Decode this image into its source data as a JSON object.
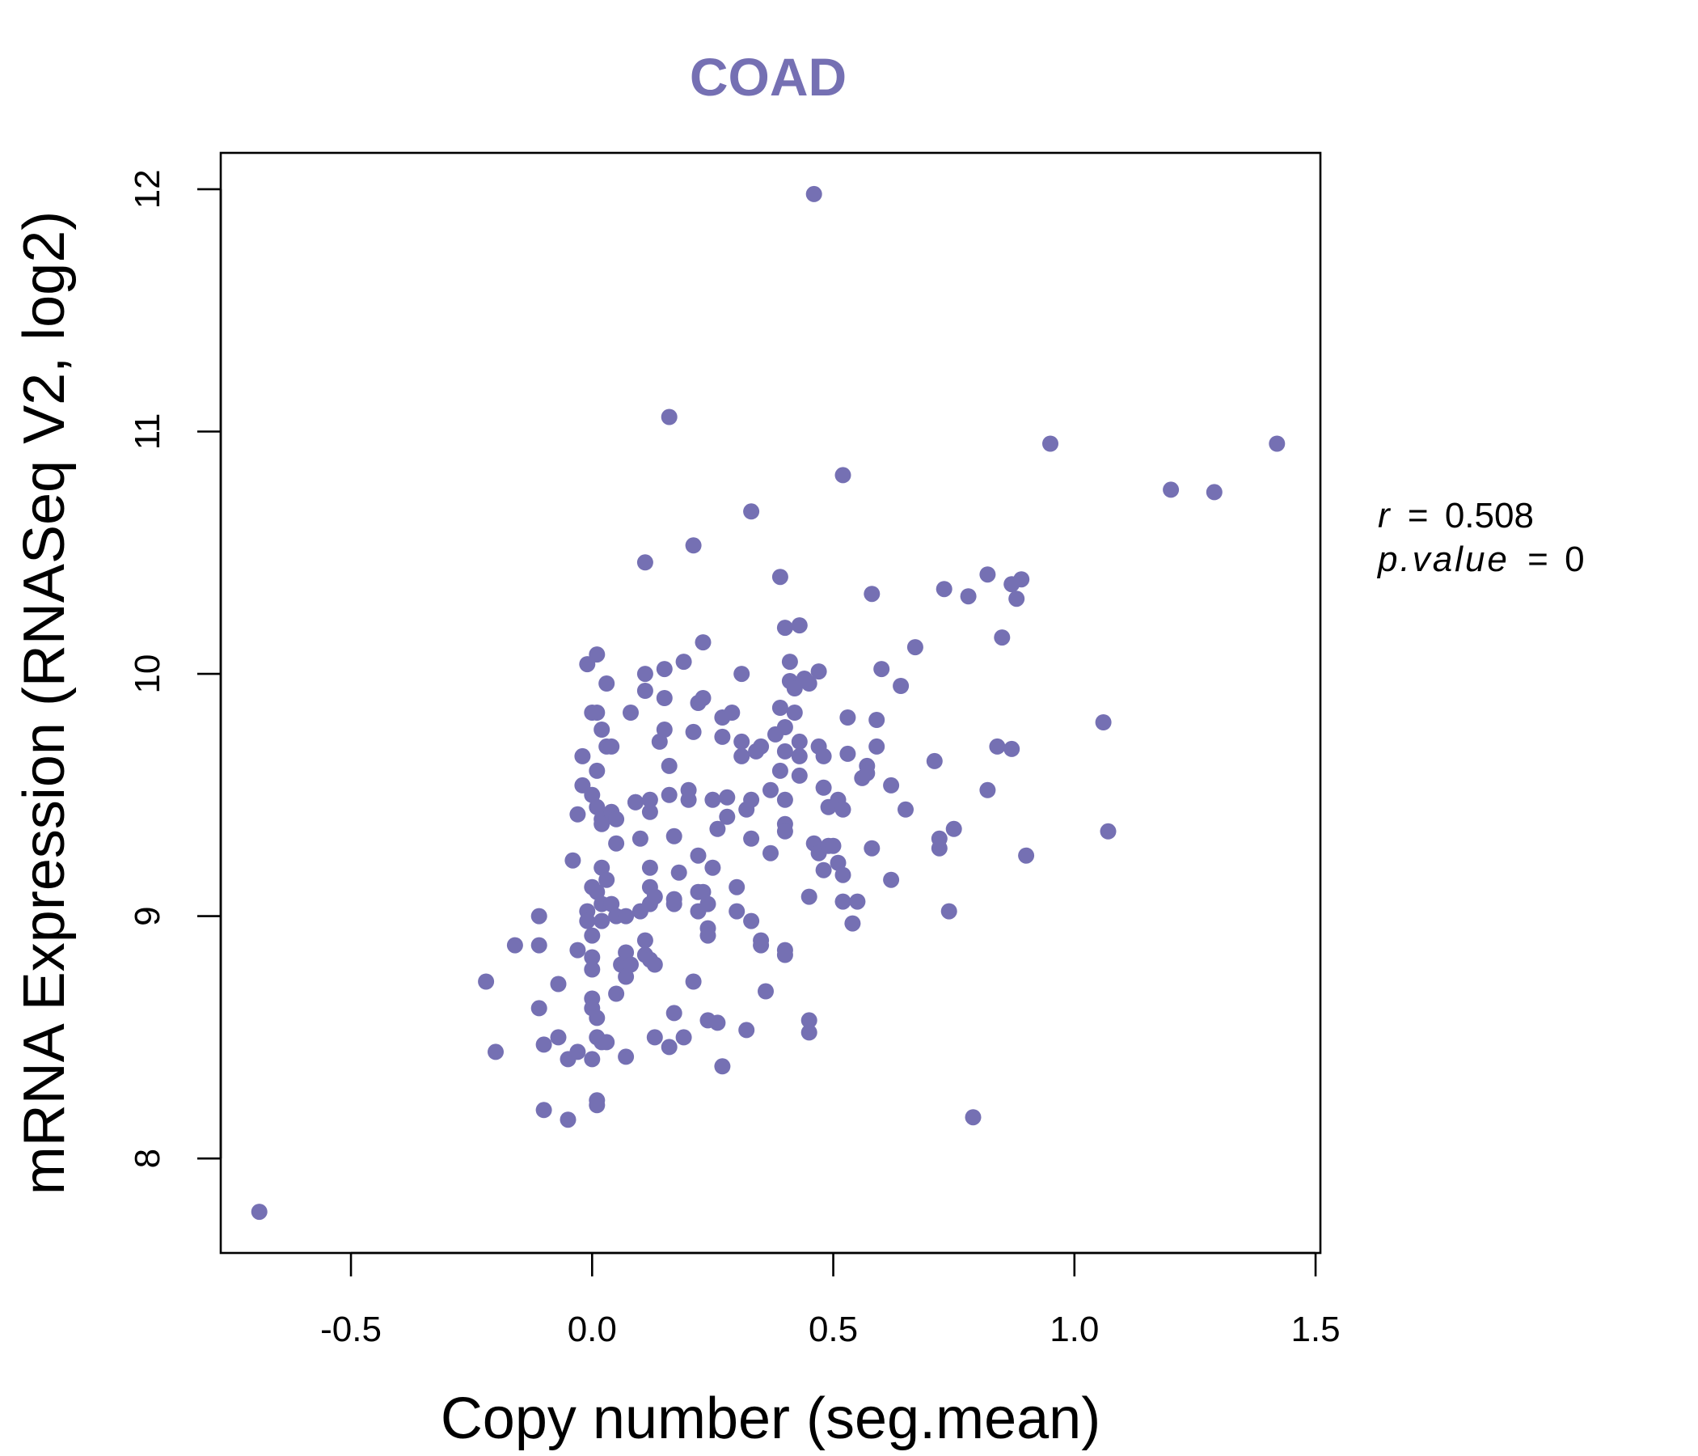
{
  "chart_data": {
    "type": "scatter",
    "title": "COAD",
    "xlabel": "Copy number (seg.mean)",
    "ylabel": "mRNA Expression (RNASeq V2, log2)",
    "xlim": [
      -0.77,
      1.51
    ],
    "ylim": [
      7.61,
      12.15
    ],
    "x_ticks": [
      -0.5,
      0.0,
      0.5,
      1.0,
      1.5
    ],
    "x_tick_labels": [
      "-0.5",
      "0.0",
      "0.5",
      "1.0",
      "1.5"
    ],
    "y_ticks": [
      8,
      9,
      10,
      11,
      12
    ],
    "y_tick_labels": [
      "8",
      "9",
      "10",
      "11",
      "12"
    ],
    "point_color": "#7570b3",
    "title_color": "#7570b3",
    "stats": {
      "r_label": "r",
      "r_value": "0.508",
      "p_label": "p.value",
      "p_value": "0"
    },
    "series": [
      {
        "name": "COAD",
        "points": [
          [
            -0.69,
            7.78
          ],
          [
            -0.22,
            8.73
          ],
          [
            -0.2,
            8.44
          ],
          [
            -0.16,
            8.88
          ],
          [
            -0.11,
            9.0
          ],
          [
            -0.11,
            8.88
          ],
          [
            -0.11,
            8.62
          ],
          [
            -0.1,
            8.47
          ],
          [
            -0.1,
            8.2
          ],
          [
            -0.07,
            8.72
          ],
          [
            -0.07,
            8.5
          ],
          [
            -0.05,
            8.16
          ],
          [
            -0.05,
            8.41
          ],
          [
            -0.04,
            9.23
          ],
          [
            -0.03,
            8.44
          ],
          [
            -0.03,
            8.86
          ],
          [
            -0.02,
            9.66
          ],
          [
            -0.02,
            9.54
          ],
          [
            -0.03,
            9.42
          ],
          [
            -0.01,
            9.02
          ],
          [
            -0.01,
            8.98
          ],
          [
            0.0,
            8.66
          ],
          [
            0.0,
            8.62
          ],
          [
            0.0,
            8.83
          ],
          [
            0.0,
            8.78
          ],
          [
            0.0,
            9.84
          ],
          [
            -0.01,
            10.04
          ],
          [
            0.01,
            10.08
          ],
          [
            0.01,
            9.84
          ],
          [
            0.02,
            9.77
          ],
          [
            0.01,
            9.6
          ],
          [
            0.0,
            9.5
          ],
          [
            0.01,
            9.45
          ],
          [
            0.02,
            9.4
          ],
          [
            0.03,
            9.96
          ],
          [
            0.03,
            9.7
          ],
          [
            0.04,
            9.7
          ],
          [
            0.02,
            9.38
          ],
          [
            0.02,
            9.2
          ],
          [
            0.03,
            9.15
          ],
          [
            0.01,
            9.1
          ],
          [
            0.0,
            9.12
          ],
          [
            0.02,
            9.05
          ],
          [
            0.04,
            9.05
          ],
          [
            0.05,
            9.0
          ],
          [
            0.0,
            8.92
          ],
          [
            0.01,
            8.58
          ],
          [
            0.01,
            8.5
          ],
          [
            0.02,
            8.48
          ],
          [
            0.03,
            8.48
          ],
          [
            0.0,
            8.41
          ],
          [
            0.01,
            8.24
          ],
          [
            0.01,
            8.22
          ],
          [
            0.02,
            8.98
          ],
          [
            0.04,
            9.43
          ],
          [
            0.05,
            9.4
          ],
          [
            0.05,
            9.3
          ],
          [
            0.06,
            8.8
          ],
          [
            0.07,
            8.85
          ],
          [
            0.07,
            8.75
          ],
          [
            0.08,
            8.8
          ],
          [
            0.05,
            8.68
          ],
          [
            0.07,
            8.42
          ],
          [
            0.07,
            9.0
          ],
          [
            0.08,
            9.84
          ],
          [
            0.09,
            9.47
          ],
          [
            0.09,
            9.47
          ],
          [
            0.1,
            9.02
          ],
          [
            0.1,
            9.32
          ],
          [
            0.11,
            10.0
          ],
          [
            0.11,
            9.93
          ],
          [
            0.11,
            10.46
          ],
          [
            0.12,
            9.48
          ],
          [
            0.12,
            9.43
          ],
          [
            0.12,
            9.2
          ],
          [
            0.12,
            9.12
          ],
          [
            0.12,
            9.05
          ],
          [
            0.13,
            9.08
          ],
          [
            0.11,
            8.9
          ],
          [
            0.11,
            8.84
          ],
          [
            0.12,
            8.82
          ],
          [
            0.13,
            8.8
          ],
          [
            0.13,
            8.5
          ],
          [
            0.14,
            9.72
          ],
          [
            0.15,
            9.77
          ],
          [
            0.15,
            9.9
          ],
          [
            0.15,
            10.02
          ],
          [
            0.16,
            9.62
          ],
          [
            0.16,
            9.5
          ],
          [
            0.16,
            11.06
          ],
          [
            0.17,
            9.33
          ],
          [
            0.17,
            9.05
          ],
          [
            0.17,
            9.07
          ],
          [
            0.17,
            8.6
          ],
          [
            0.16,
            8.46
          ],
          [
            0.18,
            9.18
          ],
          [
            0.19,
            8.5
          ],
          [
            0.19,
            10.05
          ],
          [
            0.2,
            9.48
          ],
          [
            0.2,
            9.52
          ],
          [
            0.21,
            9.76
          ],
          [
            0.21,
            8.73
          ],
          [
            0.21,
            10.53
          ],
          [
            0.22,
            9.88
          ],
          [
            0.22,
            9.25
          ],
          [
            0.22,
            9.02
          ],
          [
            0.22,
            9.1
          ],
          [
            0.23,
            9.9
          ],
          [
            0.23,
            10.13
          ],
          [
            0.23,
            9.1
          ],
          [
            0.24,
            9.05
          ],
          [
            0.24,
            8.95
          ],
          [
            0.24,
            8.92
          ],
          [
            0.24,
            8.57
          ],
          [
            0.25,
            9.48
          ],
          [
            0.25,
            9.2
          ],
          [
            0.26,
            9.36
          ],
          [
            0.26,
            8.56
          ],
          [
            0.27,
            8.38
          ],
          [
            0.27,
            9.82
          ],
          [
            0.27,
            9.74
          ],
          [
            0.28,
            9.49
          ],
          [
            0.28,
            9.41
          ],
          [
            0.29,
            9.84
          ],
          [
            0.3,
            9.12
          ],
          [
            0.3,
            9.02
          ],
          [
            0.31,
            10.0
          ],
          [
            0.31,
            9.72
          ],
          [
            0.31,
            9.66
          ],
          [
            0.32,
            9.44
          ],
          [
            0.33,
            9.48
          ],
          [
            0.33,
            9.32
          ],
          [
            0.33,
            8.98
          ],
          [
            0.32,
            8.53
          ],
          [
            0.33,
            10.67
          ],
          [
            0.34,
            9.68
          ],
          [
            0.35,
            9.7
          ],
          [
            0.35,
            8.9
          ],
          [
            0.35,
            8.88
          ],
          [
            0.36,
            8.69
          ],
          [
            0.37,
            9.52
          ],
          [
            0.37,
            9.26
          ],
          [
            0.38,
            9.75
          ],
          [
            0.39,
            9.86
          ],
          [
            0.39,
            9.6
          ],
          [
            0.39,
            10.4
          ],
          [
            0.4,
            9.78
          ],
          [
            0.4,
            9.68
          ],
          [
            0.4,
            9.48
          ],
          [
            0.4,
            9.38
          ],
          [
            0.4,
            9.35
          ],
          [
            0.4,
            8.86
          ],
          [
            0.4,
            8.84
          ],
          [
            0.4,
            10.19
          ],
          [
            0.41,
            10.05
          ],
          [
            0.41,
            9.97
          ],
          [
            0.42,
            9.94
          ],
          [
            0.42,
            9.84
          ],
          [
            0.43,
            9.72
          ],
          [
            0.43,
            9.66
          ],
          [
            0.43,
            9.58
          ],
          [
            0.43,
            10.2
          ],
          [
            0.44,
            9.98
          ],
          [
            0.45,
            9.96
          ],
          [
            0.45,
            9.08
          ],
          [
            0.45,
            8.57
          ],
          [
            0.45,
            8.52
          ],
          [
            0.46,
            11.98
          ],
          [
            0.46,
            9.3
          ],
          [
            0.47,
            9.26
          ],
          [
            0.47,
            10.01
          ],
          [
            0.47,
            9.7
          ],
          [
            0.48,
            9.53
          ],
          [
            0.48,
            9.66
          ],
          [
            0.48,
            9.19
          ],
          [
            0.49,
            9.45
          ],
          [
            0.49,
            9.29
          ],
          [
            0.5,
            9.29
          ],
          [
            0.51,
            9.48
          ],
          [
            0.51,
            9.22
          ],
          [
            0.52,
            9.44
          ],
          [
            0.52,
            9.17
          ],
          [
            0.52,
            9.06
          ],
          [
            0.52,
            10.82
          ],
          [
            0.53,
            9.82
          ],
          [
            0.53,
            9.67
          ],
          [
            0.54,
            8.97
          ],
          [
            0.55,
            9.06
          ],
          [
            0.56,
            9.57
          ],
          [
            0.57,
            9.62
          ],
          [
            0.57,
            9.59
          ],
          [
            0.58,
            10.33
          ],
          [
            0.58,
            9.28
          ],
          [
            0.59,
            9.81
          ],
          [
            0.59,
            9.7
          ],
          [
            0.6,
            10.02
          ],
          [
            0.62,
            9.54
          ],
          [
            0.62,
            9.15
          ],
          [
            0.64,
            9.95
          ],
          [
            0.65,
            9.44
          ],
          [
            0.67,
            10.11
          ],
          [
            0.71,
            9.64
          ],
          [
            0.72,
            9.28
          ],
          [
            0.72,
            9.32
          ],
          [
            0.73,
            10.35
          ],
          [
            0.74,
            9.02
          ],
          [
            0.75,
            9.36
          ],
          [
            0.78,
            10.32
          ],
          [
            0.79,
            8.17
          ],
          [
            0.82,
            10.41
          ],
          [
            0.82,
            9.52
          ],
          [
            0.84,
            9.7
          ],
          [
            0.85,
            10.15
          ],
          [
            0.87,
            9.69
          ],
          [
            0.87,
            10.37
          ],
          [
            0.88,
            10.31
          ],
          [
            0.89,
            10.39
          ],
          [
            0.9,
            9.25
          ],
          [
            0.95,
            10.95
          ],
          [
            1.06,
            9.8
          ],
          [
            1.07,
            9.35
          ],
          [
            1.2,
            10.76
          ],
          [
            1.29,
            10.75
          ],
          [
            1.42,
            10.95
          ]
        ]
      }
    ]
  }
}
